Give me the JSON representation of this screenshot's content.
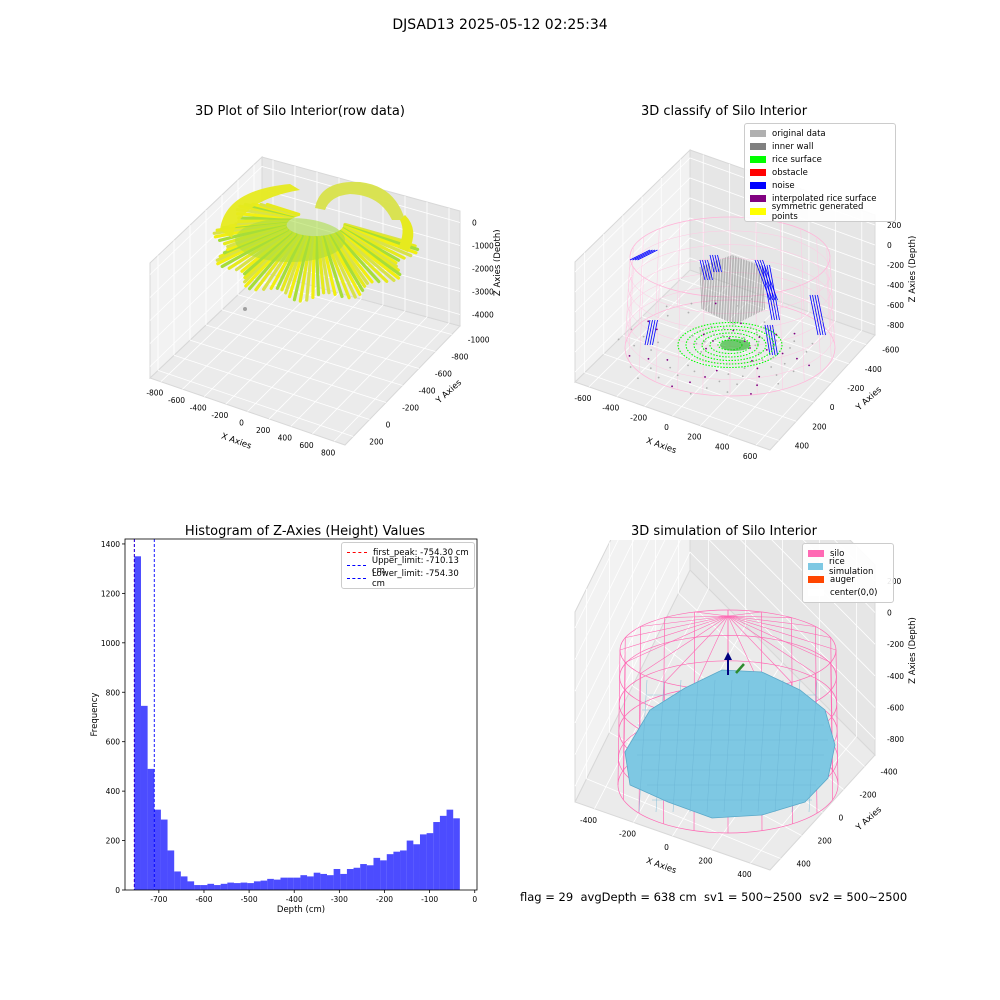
{
  "suptitle": "DJSAD13 2025-05-12 02:25:34",
  "colors": {
    "raw_points": [
      "#d8e24a",
      "#e6ea1e",
      "#a6dd3a",
      "#f2ef10"
    ],
    "classify": {
      "original": "#b0b0b0",
      "wall": "#808080",
      "rice": "#00ff00",
      "obstacle": "#ff0000",
      "noise": "#0000ff",
      "interp": "#800080",
      "sym": "#ffff00"
    },
    "silo": "#ff69b4",
    "rice_sim": "#7ec8e3",
    "auger": "#ff4500",
    "hist_bar": "#0000ff"
  },
  "panels": {
    "raw": {
      "title": "3D Plot of Silo Interior(row data)",
      "xlabel": "X Axies",
      "ylabel": "Y Axies",
      "zlabel": "Z Axies (Depth)",
      "xticks": [
        "-800",
        "-600",
        "-400",
        "-200",
        "0",
        "200",
        "400",
        "600",
        "800"
      ],
      "yticks": [
        "200",
        "0",
        "-200",
        "-400",
        "-600",
        "-800",
        "-1000"
      ],
      "zticks": [
        "0",
        "-1000",
        "-2000",
        "-3000",
        "-4000"
      ]
    },
    "classify": {
      "title": "3D classify of Silo Interior",
      "legend": [
        "original data",
        "inner wall",
        "rice surface",
        "obstacle",
        "noise",
        "interpolated rice surface",
        "symmetric generated points"
      ],
      "legend_colors": [
        "#b0b0b0",
        "#808080",
        "#00ff00",
        "#ff0000",
        "#0000ff",
        "#800080",
        "#ffff00"
      ],
      "xlabel": "X Axies",
      "ylabel": "Y Axies",
      "zlabel": "Z Axies (Depth)",
      "xticks": [
        "-600",
        "-400",
        "-200",
        "0",
        "200",
        "400",
        "600"
      ],
      "yticks": [
        "400",
        "200",
        "0",
        "-200",
        "-400",
        "-600"
      ],
      "zticks": [
        "200",
        "0",
        "-200",
        "-400",
        "-600",
        "-800"
      ]
    },
    "hist": {
      "title": "Histogram of Z-Axies (Height) Values",
      "xlabel": "Depth (cm)",
      "ylabel": "Frequency",
      "legend": [
        "first_peak: -754.30 cm",
        "Upper_limit: -710.13 cm",
        "Lower_limit: -754.30 cm"
      ],
      "legend_colors": [
        "#ff0000",
        "#0000ff",
        "#0000ff"
      ]
    },
    "sim": {
      "title": "3D simulation of Silo Interior",
      "legend": [
        "silo",
        "rice simulation",
        "auger",
        "center(0,0)"
      ],
      "legend_colors": [
        "#ff69b4",
        "#7ec8e3",
        "#ff4500",
        "#ffffff"
      ],
      "xlabel": "X Axies",
      "ylabel": "Y Axies",
      "zlabel": "Z Axies (Depth)",
      "xticks": [
        "-400",
        "-200",
        "0",
        "200",
        "400"
      ],
      "yticks": [
        "400",
        "200",
        "0",
        "-200",
        "-400"
      ],
      "zticks": [
        "200",
        "0",
        "-200",
        "-400",
        "-600",
        "-800"
      ]
    }
  },
  "footer": "flag = 29  avgDepth = 638 cm  sv1 = 500~2500  sv2 = 500~2500",
  "chart_data": [
    {
      "type": "bar",
      "title": "Histogram of Z-Axies (Height) Values",
      "xlabel": "Depth (cm)",
      "ylabel": "Frequency",
      "xlim": [
        -775,
        5
      ],
      "ylim": [
        0,
        1420
      ],
      "xticks": [
        -700,
        -600,
        -500,
        -400,
        -300,
        -200,
        -100,
        0
      ],
      "yticks": [
        0,
        200,
        400,
        600,
        800,
        1000,
        1200,
        1400
      ],
      "bin_start": -754.3,
      "bin_width": 14.72,
      "values": [
        1350,
        745,
        490,
        325,
        285,
        160,
        75,
        55,
        35,
        20,
        20,
        25,
        20,
        25,
        30,
        28,
        30,
        28,
        35,
        38,
        45,
        42,
        50,
        50,
        50,
        60,
        55,
        70,
        65,
        60,
        85,
        65,
        85,
        90,
        105,
        100,
        130,
        120,
        145,
        155,
        160,
        200,
        185,
        225,
        230,
        275,
        300,
        325,
        290
      ],
      "vlines": [
        {
          "x": -754.3,
          "color": "#ff0000",
          "label": "first_peak: -754.30 cm"
        },
        {
          "x": -710.13,
          "color": "#0000ff",
          "label": "Upper_limit: -710.13 cm"
        },
        {
          "x": -754.3,
          "color": "#0000ff",
          "label": "Lower_limit: -754.30 cm"
        }
      ],
      "legend_position": "upper right"
    }
  ]
}
